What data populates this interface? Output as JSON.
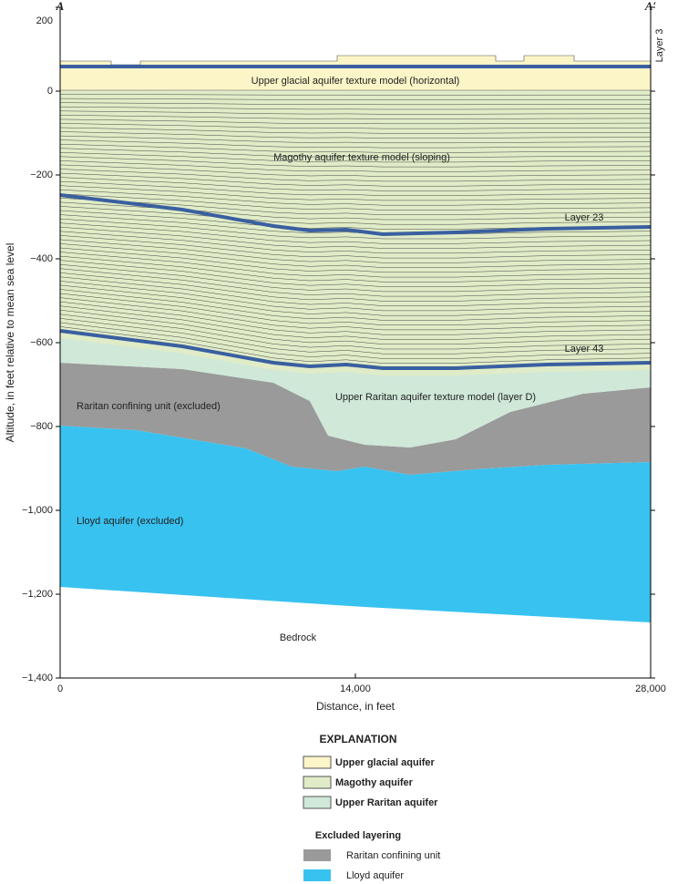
{
  "labels": {
    "a": "A",
    "a_prime": "A′",
    "y_axis_title": "Altitude, in feet relative to mean sea level",
    "x_axis_title": "Distance, in feet"
  },
  "axes": {
    "ylim": [
      -1400,
      200
    ],
    "yticks": [
      200,
      0,
      {
        "value": -200,
        "label": "−200"
      },
      {
        "value": -400,
        "label": "−400"
      },
      {
        "value": -600,
        "label": "−600"
      },
      {
        "value": -800,
        "label": "−800"
      },
      {
        "value": -1000,
        "label": "−1,000"
      },
      {
        "value": -1200,
        "label": "−1,200"
      },
      {
        "value": -1400,
        "label": "−1,400"
      }
    ],
    "xlim": [
      0,
      28000
    ],
    "xticks": [
      0,
      {
        "value": 14000,
        "label": "14,000"
      },
      {
        "value": 28000,
        "label": "28,000"
      }
    ]
  },
  "annotations": {
    "layer3": "Layer 3",
    "upper_glacial": "Upper glacial aquifer texture model (horizontal)",
    "magothy": "Magothy aquifer texture model (sloping)",
    "layer23": "Layer 23",
    "layer43": "Layer 43",
    "upper_raritan": "Upper Raritan aquifer texture model (layer D)",
    "raritan": "Raritan confining unit (excluded)",
    "lloyd": "Lloyd aquifer (excluded)",
    "bedrock": "Bedrock"
  },
  "explanation": {
    "title": "EXPLANATION",
    "items": [
      "Upper glacial aquifer",
      "Magothy aquifer",
      "Upper Raritan aquifer"
    ],
    "excluded_title": "Excluded layering",
    "excluded_items": [
      "Raritan confining unit",
      "Lloyd aquifer"
    ]
  }
}
